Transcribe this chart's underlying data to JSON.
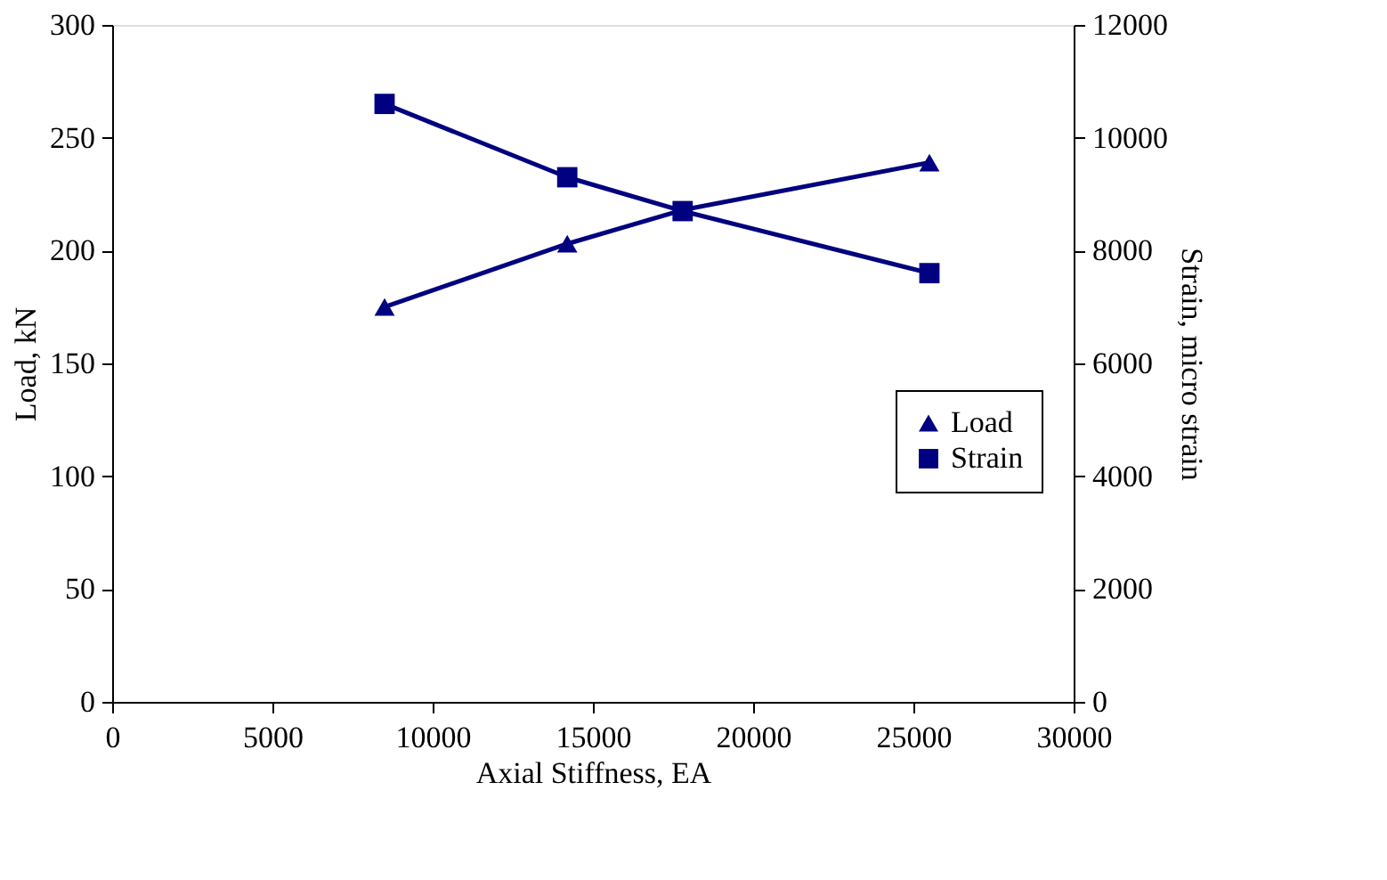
{
  "chart_data": {
    "type": "line",
    "xlabel": "Axial Stiffness, EA",
    "ylabel": "Load, kN",
    "y2label": "Strain, micro strain",
    "x": [
      8500,
      14200,
      17800,
      25500
    ],
    "series": [
      {
        "name": "Load",
        "color": "#000080",
        "marker": "triangle",
        "values": [
          175,
          203,
          218,
          239
        ]
      },
      {
        "name": "Strain",
        "color": "#000080",
        "marker": "square",
        "axis": "y2",
        "values": [
          10600,
          9300,
          8700,
          7600
        ]
      }
    ],
    "xlim": [
      0,
      30000
    ],
    "xticks": [
      0,
      5000,
      10000,
      15000,
      20000,
      25000,
      30000
    ],
    "ylim": [
      0,
      300
    ],
    "yticks": [
      0,
      50,
      100,
      150,
      200,
      250,
      300
    ],
    "y2lim": [
      0,
      12000
    ],
    "y2ticks": [
      0,
      2000,
      4000,
      6000,
      8000,
      10000,
      12000
    ],
    "grid": false,
    "legend": "right",
    "line_style": "solid"
  }
}
